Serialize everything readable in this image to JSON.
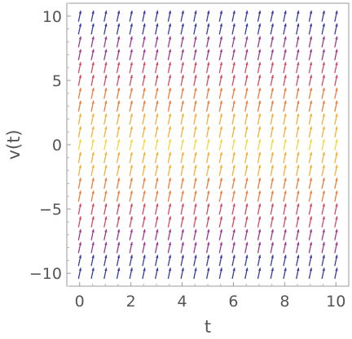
{
  "chart_data": {
    "type": "vector-field",
    "title": "",
    "xlabel": "t",
    "ylabel": "v(t)",
    "xlim": [
      -0.5,
      10.5
    ],
    "ylim": [
      -11,
      11
    ],
    "x_ticks": [
      0,
      2,
      4,
      6,
      8,
      10
    ],
    "y_ticks": [
      -10,
      -5,
      0,
      5,
      10
    ],
    "x_tick_labels": [
      "0",
      "2",
      "4",
      "6",
      "8",
      "10"
    ],
    "y_tick_labels": [
      "−10",
      "−5",
      "0",
      "5",
      "10"
    ],
    "grid": false,
    "legend": "none",
    "vector_field": {
      "x_samples": [
        0,
        0.5,
        1,
        1.5,
        2,
        2.5,
        3,
        3.5,
        4,
        4.5,
        5,
        5.5,
        6,
        6.5,
        7,
        7.5,
        8,
        8.5,
        9,
        9.5,
        10
      ],
      "y_samples": [
        -10,
        -9,
        -8,
        -7,
        -6,
        -5,
        -4,
        -3,
        -2,
        -1,
        0,
        1,
        2,
        3,
        4,
        5,
        6,
        7,
        8,
        9,
        10
      ],
      "slope_dv_dt": 9.5,
      "color_scale": "magnitude |v|: yellow (low) to purple-blue (high)",
      "colors": [
        "#f5d63a",
        "#f2b035",
        "#ec7d3c",
        "#d3495f",
        "#9a3a8f",
        "#3b3aa0"
      ]
    }
  }
}
